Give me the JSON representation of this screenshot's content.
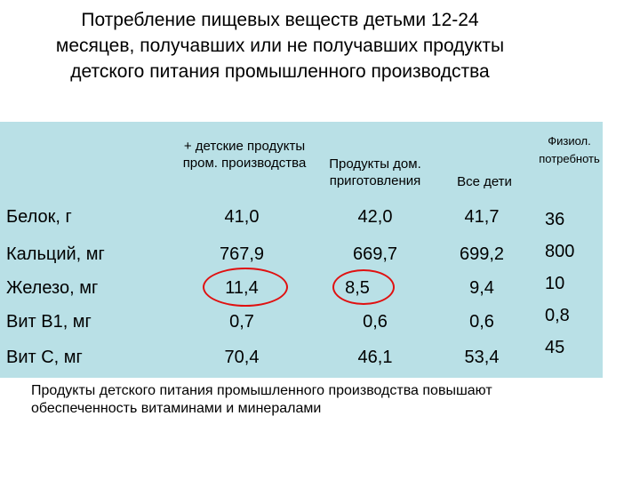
{
  "title": "Потребление пищевых веществ детьми 12-24 месяцев, получавших или не получавших продукты детского питания промышленного производства",
  "table": {
    "headers": {
      "col1": "+ детские продукты пром. производства",
      "col2": "Продукты дом. приготовления",
      "col3": "Все дети",
      "col4": "Физиол. потребноть"
    },
    "rows": [
      {
        "label": "Белок, г",
        "v1": "41,0",
        "v2": "42,0",
        "v3": "41,7",
        "norm": "36"
      },
      {
        "label": "Кальций, мг",
        "v1": "767,9",
        "v2": "669,7",
        "v3": "699,2",
        "norm": "800"
      },
      {
        "label": "Железо, мг",
        "v1": "11,4",
        "v2": "8,5",
        "v3": "9,4",
        "norm": "10"
      },
      {
        "label": "Вит В1, мг",
        "v1": "0,7",
        "v2": "0,6",
        "v3": "0,6",
        "norm": "0,8"
      },
      {
        "label": "Вит С, мг",
        "v1": "70,4",
        "v2": "46,1",
        "v3": "53,4",
        "norm": "45"
      }
    ]
  },
  "note": "Продукты детского питания промышленного производства повышают обеспеченность витаминами и минералами",
  "colors": {
    "panel": "#b9e0e6",
    "highlight_circle": "#e01010"
  }
}
